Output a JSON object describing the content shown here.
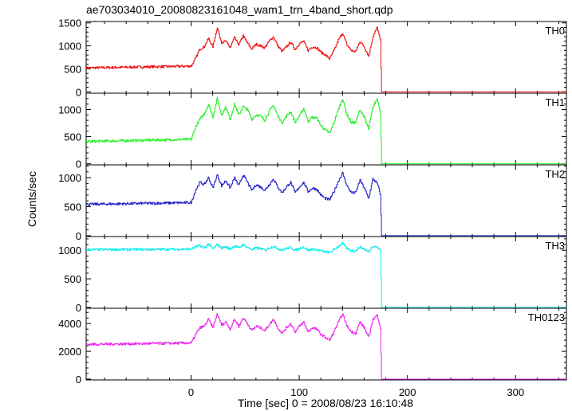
{
  "title": "ae703034010_20080823161048_wam1_trn_4band_short.qdp",
  "xlabel": "Time [sec] 0 = 2008/08/23 16:10:48",
  "ylabel": "Counts/sec",
  "chart_data": {
    "type": "line",
    "title": "ae703034010_20080823161048_wam1_trn_4band_short.qdp",
    "xlabel": "Time [sec] 0 = 2008/08/23 16:10:48",
    "ylabel": "Counts/sec",
    "xlim": [
      -97,
      347
    ],
    "xticks": [
      0,
      100,
      200,
      300
    ],
    "grid": false,
    "panels": [
      {
        "name": "TH0",
        "color": "#ee1111",
        "ylim": [
          -30,
          1530
        ],
        "yticks": [
          0,
          500,
          1000,
          1500
        ],
        "profile": {
          "x": [
            -97,
            0,
            4,
            8,
            12,
            16,
            20,
            24,
            28,
            32,
            36,
            40,
            44,
            48,
            52,
            56,
            60,
            64,
            68,
            72,
            76,
            80,
            84,
            88,
            92,
            96,
            100,
            104,
            108,
            112,
            116,
            120,
            124,
            128,
            132,
            136,
            140,
            144,
            148,
            152,
            156,
            160,
            164,
            168,
            172,
            175,
            176,
            347
          ],
          "y": [
            520,
            560,
            720,
            930,
            980,
            1160,
            980,
            1400,
            1080,
            1100,
            960,
            1180,
            1020,
            1220,
            1060,
            930,
            1040,
            1000,
            960,
            1100,
            1200,
            1000,
            880,
            980,
            1080,
            920,
            1050,
            1100,
            900,
            980,
            960,
            860,
            800,
            720,
            900,
            1120,
            1280,
            1020,
            900,
            870,
            1100,
            980,
            780,
            1200,
            1400,
            1100,
            0,
            0
          ]
        }
      },
      {
        "name": "TH1",
        "color": "#22ee22",
        "ylim": [
          -20,
          1300
        ],
        "yticks": [
          0,
          500,
          1000
        ],
        "profile": {
          "x": [
            -97,
            0,
            4,
            8,
            12,
            16,
            20,
            24,
            28,
            32,
            36,
            40,
            44,
            48,
            52,
            56,
            60,
            64,
            68,
            72,
            76,
            80,
            84,
            88,
            92,
            96,
            100,
            104,
            108,
            112,
            116,
            120,
            124,
            128,
            132,
            136,
            140,
            144,
            148,
            152,
            156,
            160,
            164,
            168,
            172,
            175,
            176,
            347
          ],
          "y": [
            410,
            450,
            680,
            820,
            920,
            1100,
            860,
            1200,
            900,
            1050,
            820,
            1100,
            900,
            1050,
            1000,
            820,
            900,
            880,
            800,
            960,
            1080,
            880,
            760,
            880,
            960,
            760,
            880,
            1020,
            780,
            860,
            840,
            700,
            620,
            560,
            760,
            1000,
            1200,
            900,
            760,
            760,
            1000,
            860,
            640,
            1050,
            1200,
            950,
            0,
            0
          ]
        }
      },
      {
        "name": "TH2",
        "color": "#2222cc",
        "ylim": [
          -15,
          1220
        ],
        "yticks": [
          0,
          500,
          1000
        ],
        "profile": {
          "x": [
            -97,
            0,
            4,
            8,
            12,
            16,
            20,
            24,
            28,
            32,
            36,
            40,
            44,
            48,
            52,
            56,
            60,
            64,
            68,
            72,
            76,
            80,
            84,
            88,
            92,
            96,
            100,
            104,
            108,
            112,
            116,
            120,
            124,
            128,
            132,
            136,
            140,
            144,
            148,
            152,
            156,
            160,
            164,
            168,
            172,
            175,
            176,
            347
          ],
          "y": [
            540,
            570,
            780,
            920,
            880,
            1000,
            820,
            1050,
            860,
            950,
            820,
            1000,
            860,
            1050,
            920,
            780,
            880,
            840,
            780,
            880,
            980,
            840,
            740,
            840,
            920,
            740,
            840,
            920,
            760,
            820,
            800,
            700,
            640,
            620,
            760,
            940,
            1080,
            860,
            740,
            740,
            960,
            820,
            640,
            980,
            900,
            700,
            0,
            0
          ]
        }
      },
      {
        "name": "TH3",
        "color": "#11eeee",
        "ylim": [
          -15,
          1240
        ],
        "yticks": [
          0,
          500,
          1000
        ],
        "profile": {
          "x": [
            -97,
            0,
            4,
            8,
            12,
            16,
            20,
            24,
            28,
            32,
            36,
            40,
            44,
            48,
            52,
            56,
            60,
            64,
            68,
            72,
            76,
            80,
            84,
            88,
            92,
            96,
            100,
            104,
            108,
            112,
            116,
            120,
            124,
            128,
            132,
            136,
            140,
            144,
            148,
            152,
            156,
            160,
            164,
            168,
            172,
            175,
            176,
            347
          ],
          "y": [
            1010,
            1020,
            1060,
            1080,
            1040,
            1110,
            1020,
            1100,
            1040,
            1060,
            1020,
            1080,
            1040,
            1100,
            1050,
            1010,
            1040,
            1030,
            1000,
            1040,
            1070,
            1030,
            1000,
            1030,
            1050,
            1000,
            1030,
            1060,
            1000,
            1020,
            1010,
            990,
            970,
            960,
            1010,
            1070,
            1120,
            1030,
            990,
            990,
            1060,
            1020,
            970,
            1080,
            1050,
            1000,
            0,
            0
          ]
        }
      },
      {
        "name": "TH0123",
        "color": "#ee22ee",
        "ylim": [
          -60,
          5100
        ],
        "yticks": [
          0,
          2000,
          4000
        ],
        "profile": {
          "x": [
            -97,
            0,
            4,
            8,
            12,
            16,
            20,
            24,
            28,
            32,
            36,
            40,
            44,
            48,
            52,
            56,
            60,
            64,
            68,
            72,
            76,
            80,
            84,
            88,
            92,
            96,
            100,
            104,
            108,
            112,
            116,
            120,
            124,
            128,
            132,
            136,
            140,
            144,
            148,
            152,
            156,
            160,
            164,
            168,
            172,
            175,
            176,
            347
          ],
          "y": [
            2500,
            2600,
            3200,
            3700,
            3800,
            4300,
            3700,
            4700,
            3900,
            4100,
            3600,
            4300,
            3800,
            4400,
            4000,
            3500,
            3800,
            3700,
            3500,
            3900,
            4300,
            3700,
            3300,
            3700,
            4000,
            3400,
            3800,
            4100,
            3400,
            3700,
            3600,
            3200,
            3000,
            2800,
            3400,
            4100,
            4700,
            3800,
            3400,
            3300,
            4100,
            3700,
            3000,
            4300,
            4600,
            3700,
            0,
            0
          ]
        }
      }
    ]
  }
}
